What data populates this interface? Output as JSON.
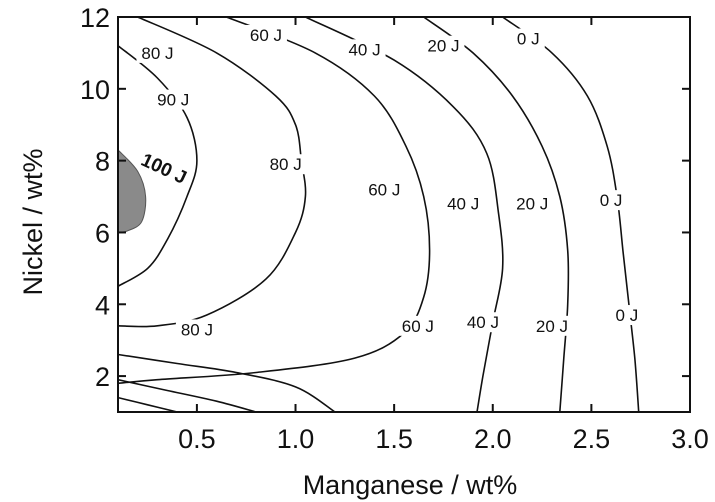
{
  "chart_data": {
    "type": "contour",
    "title": "",
    "xlabel": "Manganese / wt%",
    "ylabel": "Nickel / wt%",
    "xlim": [
      0.1,
      3.0
    ],
    "ylim": [
      1.0,
      12.0
    ],
    "x_ticks": [
      0.5,
      1.0,
      1.5,
      2.0,
      2.5,
      3.0
    ],
    "x_tick_labels": [
      "0.5",
      "1.0",
      "1.5",
      "2.0",
      "2.5",
      "3.0"
    ],
    "y_ticks": [
      2,
      4,
      6,
      8,
      10,
      12
    ],
    "y_tick_labels": [
      "2",
      "4",
      "6",
      "8",
      "10",
      "12"
    ],
    "grid": false,
    "legend": "none",
    "shaded_region": {
      "label": "100 J",
      "color": "#8a8a8a",
      "points": [
        [
          0.1,
          8.3
        ],
        [
          0.2,
          7.7
        ],
        [
          0.24,
          7.0
        ],
        [
          0.22,
          6.3
        ],
        [
          0.15,
          6.05
        ],
        [
          0.1,
          6.0
        ]
      ]
    },
    "contours": [
      {
        "level": 90,
        "label": "90 J",
        "points": [
          [
            0.1,
            11.2
          ],
          [
            0.3,
            10.3
          ],
          [
            0.45,
            9.2
          ],
          [
            0.5,
            8.0
          ],
          [
            0.45,
            7.0
          ],
          [
            0.35,
            5.8
          ],
          [
            0.25,
            5.0
          ],
          [
            0.1,
            4.5
          ]
        ],
        "label_at": [
          0.38,
          9.7
        ]
      },
      {
        "level": 80,
        "label": "80 J",
        "points": [
          [
            0.2,
            12.0
          ],
          [
            0.6,
            11.0
          ],
          [
            0.9,
            9.8
          ],
          [
            1.0,
            9.0
          ],
          [
            1.03,
            8.0
          ],
          [
            1.05,
            7.0
          ],
          [
            1.0,
            6.0
          ],
          [
            0.85,
            4.7
          ],
          [
            0.55,
            3.7
          ],
          [
            0.3,
            3.4
          ],
          [
            0.1,
            3.4
          ]
        ],
        "label_at": [
          [
            0.3,
            11.0
          ],
          [
            0.95,
            7.9
          ],
          [
            0.5,
            3.3
          ]
        ]
      },
      {
        "level": 60,
        "label": "60 J",
        "points": [
          [
            0.65,
            12.0
          ],
          [
            1.1,
            11.0
          ],
          [
            1.4,
            9.8
          ],
          [
            1.56,
            8.4
          ],
          [
            1.65,
            7.0
          ],
          [
            1.68,
            5.5
          ],
          [
            1.65,
            4.2
          ],
          [
            1.55,
            3.2
          ],
          [
            1.3,
            2.5
          ],
          [
            0.8,
            2.1
          ],
          [
            0.3,
            1.9
          ],
          [
            0.1,
            1.8
          ]
        ],
        "label_at": [
          [
            0.85,
            11.5
          ],
          [
            1.45,
            7.2
          ],
          [
            1.62,
            3.4
          ]
        ]
      },
      {
        "level": 40,
        "label": "40 J",
        "points": [
          [
            1.05,
            12.0
          ],
          [
            1.5,
            10.8
          ],
          [
            1.8,
            9.5
          ],
          [
            1.97,
            8.2
          ],
          [
            2.03,
            6.5
          ],
          [
            2.05,
            5.0
          ],
          [
            2.0,
            3.5
          ],
          [
            1.95,
            2.0
          ],
          [
            1.92,
            1.0
          ]
        ],
        "label_at": [
          [
            1.35,
            11.1
          ],
          [
            1.85,
            6.8
          ],
          [
            1.95,
            3.5
          ]
        ]
      },
      {
        "level": 20,
        "label": "20 J",
        "points": [
          [
            1.65,
            12.0
          ],
          [
            1.9,
            11.0
          ],
          [
            2.1,
            9.8
          ],
          [
            2.25,
            8.4
          ],
          [
            2.34,
            7.0
          ],
          [
            2.38,
            5.5
          ],
          [
            2.38,
            4.0
          ],
          [
            2.36,
            2.5
          ],
          [
            2.34,
            1.0
          ]
        ],
        "label_at": [
          [
            1.75,
            11.2
          ],
          [
            2.2,
            6.8
          ],
          [
            2.3,
            3.4
          ]
        ]
      },
      {
        "level": 0,
        "label": "0 J",
        "points": [
          [
            2.05,
            12.0
          ],
          [
            2.3,
            11.0
          ],
          [
            2.48,
            9.8
          ],
          [
            2.58,
            8.4
          ],
          [
            2.63,
            7.0
          ],
          [
            2.66,
            5.5
          ],
          [
            2.69,
            4.0
          ],
          [
            2.72,
            2.5
          ],
          [
            2.74,
            1.0
          ]
        ],
        "label_at": [
          [
            2.18,
            11.4
          ],
          [
            2.6,
            6.9
          ],
          [
            2.68,
            3.7
          ]
        ]
      }
    ],
    "extra_lower_left_lines": [
      [
        [
          0.1,
          2.6
        ],
        [
          0.4,
          2.35
        ],
        [
          0.7,
          2.1
        ],
        [
          1.0,
          1.7
        ],
        [
          1.2,
          1.0
        ]
      ],
      [
        [
          0.1,
          1.9
        ],
        [
          0.35,
          1.6
        ],
        [
          0.6,
          1.3
        ],
        [
          0.8,
          1.0
        ]
      ],
      [
        [
          0.1,
          1.4
        ],
        [
          0.25,
          1.2
        ],
        [
          0.4,
          1.0
        ]
      ]
    ]
  }
}
